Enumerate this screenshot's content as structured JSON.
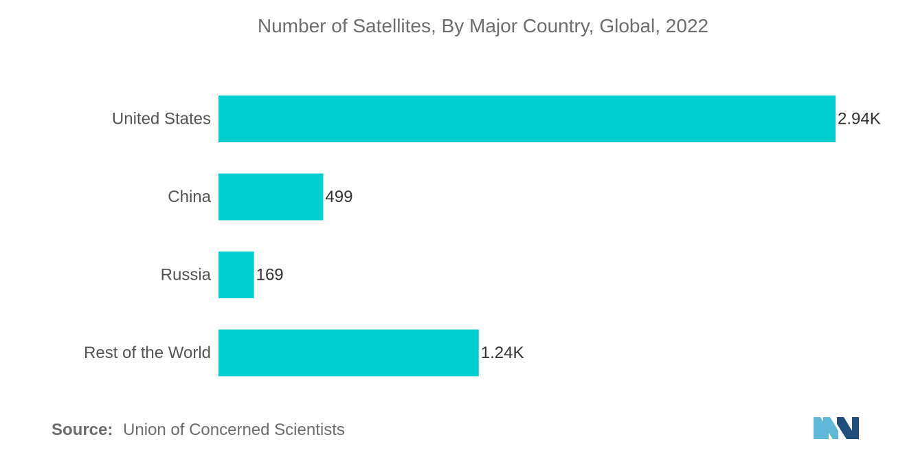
{
  "chart_data": {
    "type": "bar",
    "orientation": "horizontal",
    "title": "Number of Satellites, By Major Country, Global, 2022",
    "categories": [
      "United States",
      "China",
      "Russia",
      "Rest of the World"
    ],
    "values": [
      2940,
      499,
      169,
      1240
    ],
    "value_labels": [
      "2.94K",
      "499",
      "169",
      "1.24K"
    ],
    "xlim": [
      0,
      2940
    ],
    "grid": false,
    "bar_color": "#00CED1"
  },
  "footer": {
    "source_label": "Source:",
    "source_text": "Union of Concerned Scientists"
  },
  "logo": {
    "icon": "mordor-intelligence-logo-icon",
    "color_light": "#5FB8D8",
    "color_dark": "#1F4E7A"
  }
}
